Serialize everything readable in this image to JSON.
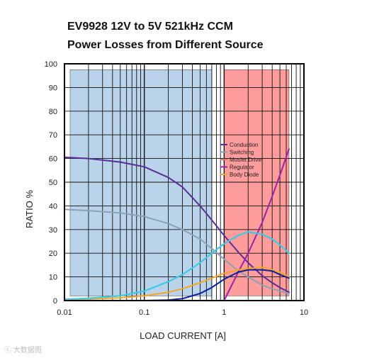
{
  "chart_data": {
    "type": "line",
    "title": "EV9928 12V to 5V 521kHz CCM",
    "subtitle": "Power Losses from Different Source",
    "xlabel": "LOAD CURRENT [A]",
    "ylabel": "RATIO %",
    "x_scale": "log",
    "xlim": [
      0.01,
      10
    ],
    "ylim": [
      0,
      100
    ],
    "x_ticks": [
      "0.01",
      "0.1",
      "1",
      "10"
    ],
    "y_ticks": [
      "0",
      "10",
      "20",
      "30",
      "40",
      "50",
      "60",
      "70",
      "80",
      "90",
      "100"
    ],
    "grid": true,
    "legend_position": "right-center",
    "shaded_regions": [
      {
        "x_start": 0.01,
        "x_end": 0.7,
        "color": "#b9d3ea"
      },
      {
        "x_start": 0.85,
        "x_end": 6.5,
        "color": "#ff9c9c"
      }
    ],
    "series": [
      {
        "name": "Conduction",
        "color": "#5b2d9a",
        "x": [
          0.01,
          0.02,
          0.05,
          0.1,
          0.2,
          0.3,
          0.5,
          0.7,
          1,
          1.5,
          2,
          3,
          4,
          5,
          6.5
        ],
        "y": [
          60.5,
          60,
          58.5,
          56.5,
          52,
          48,
          40,
          34,
          27.5,
          20.5,
          16,
          10.5,
          7.5,
          5.5,
          3.5
        ]
      },
      {
        "name": "Switching",
        "color": "#8aa2b4",
        "x": [
          0.01,
          0.02,
          0.05,
          0.1,
          0.2,
          0.3,
          0.5,
          0.7,
          1,
          1.5,
          2,
          3,
          4,
          5,
          6.5
        ],
        "y": [
          38.5,
          38,
          37,
          35.5,
          32.5,
          30,
          26,
          22,
          17.5,
          12.5,
          10,
          6.5,
          5,
          4,
          3
        ]
      },
      {
        "name": "Mosfet Driver",
        "color": "#e87878",
        "x": [
          0.01,
          0.02,
          0.05,
          0.1,
          0.2,
          0.3,
          0.5,
          0.7,
          1,
          1.5,
          2,
          3,
          4,
          5,
          6.5
        ],
        "y": [
          0.5,
          1,
          2,
          4,
          8,
          11,
          16,
          20,
          24,
          27.5,
          29,
          28,
          26,
          23.5,
          20
        ]
      },
      {
        "name": "Regulator",
        "color": "#a020a8",
        "x": [
          0.01,
          0.05,
          0.1,
          0.2,
          0.3,
          0.5,
          0.7,
          1,
          1.5,
          2,
          3,
          4,
          5,
          6.5
        ],
        "y": [
          0,
          0,
          0,
          0,
          0,
          0,
          0,
          0,
          12,
          20,
          33,
          44,
          53,
          64
        ]
      },
      {
        "name": "Body Diode",
        "color": "#f5a623",
        "x": [
          0.01,
          0.02,
          0.05,
          0.1,
          0.2,
          0.3,
          0.5,
          0.7,
          1,
          1.5,
          2,
          3,
          4,
          5,
          6.5
        ],
        "y": [
          0.3,
          0.6,
          1.2,
          2,
          3.5,
          5,
          7.5,
          9.5,
          11.5,
          13,
          13.5,
          14,
          13,
          12,
          10
        ]
      },
      {
        "name": "",
        "color": "#2ed1f0",
        "x": [
          0.01,
          0.02,
          0.05,
          0.1,
          0.2,
          0.3,
          0.5,
          0.7,
          1,
          1.5,
          2,
          3,
          4,
          5,
          6.5
        ],
        "y": [
          0.5,
          1,
          2,
          4,
          8,
          11,
          16,
          20,
          24,
          27.5,
          29,
          28,
          26,
          23.5,
          20
        ]
      },
      {
        "name": "",
        "color": "#0a1fa0",
        "x": [
          0.01,
          0.1,
          0.2,
          0.3,
          0.5,
          0.7,
          1,
          1.5,
          2,
          3,
          4,
          5,
          6.5
        ],
        "y": [
          0,
          0,
          0.2,
          0.8,
          3,
          5.5,
          9,
          12,
          13,
          13,
          12.5,
          11,
          9.5
        ]
      }
    ]
  },
  "watermark": "ⓒ 大数据图"
}
